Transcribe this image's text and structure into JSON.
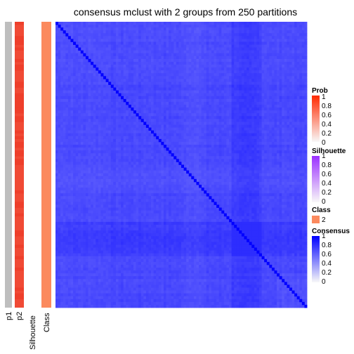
{
  "chart_data": {
    "type": "heatmap",
    "title": "consensus mclust with 2 groups from 250 partitions",
    "annotation_columns": [
      "p1",
      "p2",
      "Silhouette",
      "Class"
    ],
    "annotation_colors": {
      "p1": "#BEBEBE",
      "p2": "#F04A35",
      "class_2": "#FB8A5E"
    },
    "n_samples": 100,
    "prob_p1": 0,
    "prob_p2": 1,
    "silhouette": 0,
    "class": 2,
    "consensus_background_range": [
      0.62,
      0.82
    ],
    "consensus_diagonal": 1,
    "legends": [
      {
        "title": "Prob",
        "ticks": [
          "1",
          "0.8",
          "0.6",
          "0.4",
          "0.2",
          "0"
        ],
        "colors": [
          "#F8F8F8",
          "#FF2A00"
        ]
      },
      {
        "title": "Silhouette",
        "ticks": [
          "1",
          "0.8",
          "0.6",
          "0.4",
          "0.2",
          "0"
        ],
        "colors": [
          "#F8F8F8",
          "#9B30FF"
        ]
      },
      {
        "title": "Class",
        "entries": [
          {
            "label": "2",
            "color": "#FB8A5E"
          }
        ]
      },
      {
        "title": "Consensus",
        "ticks": [
          "1",
          "0.8",
          "0.6",
          "0.4",
          "0.2",
          "0"
        ],
        "colors": [
          "#F8F8F8",
          "#0000FF"
        ]
      }
    ]
  }
}
